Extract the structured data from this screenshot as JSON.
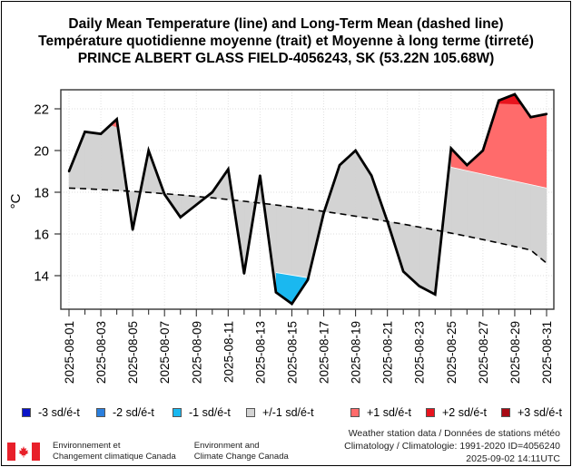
{
  "titles": {
    "line1": "Daily Mean Temperature (line) and Long-Term Mean (dashed line)",
    "line2": "Température quotidienne moyenne (trait) et Moyenne à long terme (tirreté)",
    "line3": "PRINCE ALBERT GLASS FIELD-4056243, SK (53.22N 105.68W)"
  },
  "chart_data": {
    "type": "line",
    "title": "Daily Mean Temperature (line) and Long-Term Mean (dashed line)",
    "xlabel": "",
    "ylabel": "°C",
    "ylim": [
      12.6,
      22.9
    ],
    "yticks": [
      14,
      16,
      18,
      20,
      22
    ],
    "grid": true,
    "x": [
      "2025-08-01",
      "2025-08-02",
      "2025-08-03",
      "2025-08-04",
      "2025-08-05",
      "2025-08-06",
      "2025-08-07",
      "2025-08-08",
      "2025-08-09",
      "2025-08-10",
      "2025-08-11",
      "2025-08-12",
      "2025-08-13",
      "2025-08-14",
      "2025-08-15",
      "2025-08-16",
      "2025-08-17",
      "2025-08-18",
      "2025-08-19",
      "2025-08-20",
      "2025-08-21",
      "2025-08-22",
      "2025-08-23",
      "2025-08-24",
      "2025-08-25",
      "2025-08-26",
      "2025-08-27",
      "2025-08-28",
      "2025-08-29",
      "2025-08-30",
      "2025-08-31"
    ],
    "xtick_labels": [
      "2025-08-01",
      "2025-08-03",
      "2025-08-05",
      "2025-08-07",
      "2025-08-09",
      "2025-08-11",
      "2025-08-13",
      "2025-08-15",
      "2025-08-17",
      "2025-08-19",
      "2025-08-21",
      "2025-08-23",
      "2025-08-25",
      "2025-08-27",
      "2025-08-29",
      "2025-08-31"
    ],
    "series": [
      {
        "name": "Daily Mean Temperature",
        "style": "solid",
        "color": "#000000",
        "values": [
          19.0,
          20.9,
          20.8,
          21.5,
          16.2,
          20.0,
          17.9,
          16.8,
          17.4,
          18.0,
          19.1,
          14.1,
          18.8,
          13.2,
          12.65,
          13.8,
          17.0,
          19.3,
          20.0,
          18.8,
          16.6,
          14.2,
          13.5,
          13.1,
          20.1,
          19.3,
          20.0,
          22.4,
          22.7,
          21.6,
          21.75
        ]
      },
      {
        "name": "Long-Term Mean",
        "style": "dashed",
        "color": "#000000",
        "values": [
          18.2,
          18.17,
          18.13,
          18.09,
          18.04,
          17.99,
          17.93,
          17.87,
          17.8,
          17.73,
          17.65,
          17.57,
          17.48,
          17.39,
          17.29,
          17.19,
          17.08,
          16.97,
          16.85,
          16.73,
          16.6,
          16.47,
          16.33,
          16.19,
          16.04,
          15.89,
          15.73,
          15.57,
          15.4,
          15.23,
          14.6
        ]
      }
    ],
    "sd_bands": {
      "plus1_start": 19.2,
      "plus1_end": 18.2,
      "plus2_start": 22.25,
      "plus2_end": 22.2,
      "minus1_start": 14.15,
      "minus1_end": 13.9
    },
    "legend": {
      "placement": "bottom",
      "items": [
        {
          "label": "-3 sd/é-t",
          "color": "#0a14c8"
        },
        {
          "label": "-2 sd/é-t",
          "color": "#2a7fde"
        },
        {
          "label": "-1 sd/é-t",
          "color": "#1ab8f0"
        },
        {
          "label": "+/-1 sd/é-t",
          "color": "#d3d3d3"
        },
        {
          "label": "+1 sd/é-t",
          "color": "#ff6b6b"
        },
        {
          "label": "+2 sd/é-t",
          "color": "#e8141e"
        },
        {
          "label": "+3 sd/é-t",
          "color": "#a80a14"
        }
      ]
    }
  },
  "footer": {
    "org_fr_line1": "Environnement et",
    "org_fr_line2": "Changement climatique Canada",
    "org_en_line1": "Environment and",
    "org_en_line2": "Climate Change Canada",
    "source_line1": "Weather station data / Données de stations météo",
    "source_line2": "Climatology / Climatologie: 1991-2020 ID=4056240",
    "source_line3": "2025-09-02 14:11UTC"
  },
  "colors": {
    "flag_red": "#e8202a"
  }
}
